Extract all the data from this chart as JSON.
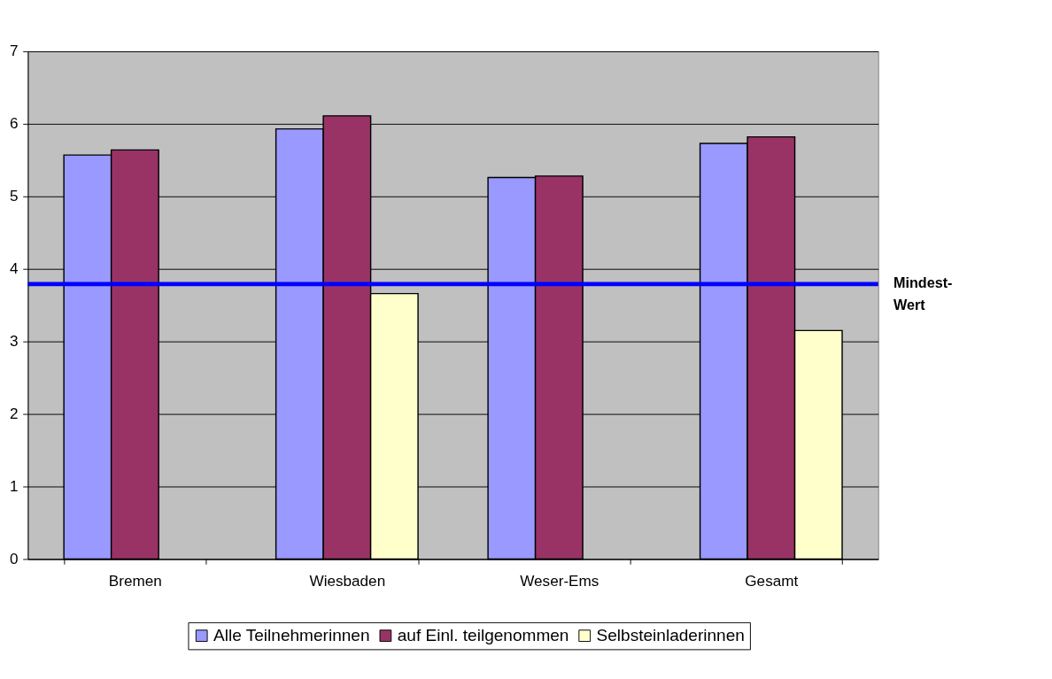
{
  "chart_data": {
    "type": "bar",
    "categories": [
      "Bremen",
      "Wiesbaden",
      "Weser-Ems",
      "Gesamt"
    ],
    "series": [
      {
        "name": "Alle Teilnehmerinnen",
        "color": "#9999ff",
        "values": [
          5.57,
          5.93,
          5.26,
          5.73
        ]
      },
      {
        "name": "auf Einl. teilgenommen",
        "color": "#993366",
        "values": [
          5.64,
          6.11,
          5.28,
          5.82
        ]
      },
      {
        "name": "Selbsteinladerinnen",
        "color": "#ffffcc",
        "values": [
          null,
          3.66,
          null,
          3.15
        ]
      }
    ],
    "ylim": [
      0,
      7
    ],
    "yticks": [
      0,
      1,
      2,
      3,
      4,
      5,
      6,
      7
    ],
    "grid": "y",
    "legend": "bottom",
    "ref_lines": [
      {
        "axis": "y",
        "value": 3.79,
        "label": "Mindest-\nWert",
        "color": "#0000ff"
      }
    ]
  }
}
